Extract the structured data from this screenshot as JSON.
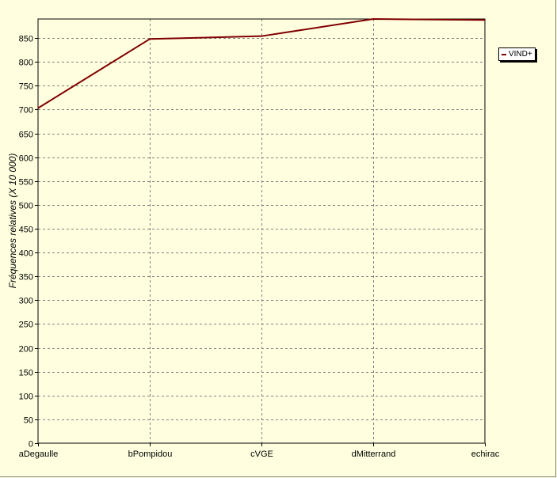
{
  "chart_data": {
    "type": "line",
    "categories": [
      "aDegaulle",
      "bPompidou",
      "cVGE",
      "dMitterrand",
      "echirac"
    ],
    "series": [
      {
        "name": "VIND+",
        "values": [
          703,
          848,
          854,
          890,
          888
        ],
        "color": "#800000"
      }
    ],
    "ylabel": "Fréquences relatives (X 10 000)",
    "xlabel": "",
    "ylim": [
      0,
      890
    ],
    "yticks": [
      0,
      50,
      100,
      150,
      200,
      250,
      300,
      350,
      400,
      450,
      500,
      550,
      600,
      650,
      700,
      750,
      800,
      850
    ],
    "grid": true,
    "legend_position": "right",
    "colors": {
      "background": "#ffffe0",
      "plot_background": "#ffffe0",
      "grid": "#808080",
      "axis": "#000000"
    }
  }
}
